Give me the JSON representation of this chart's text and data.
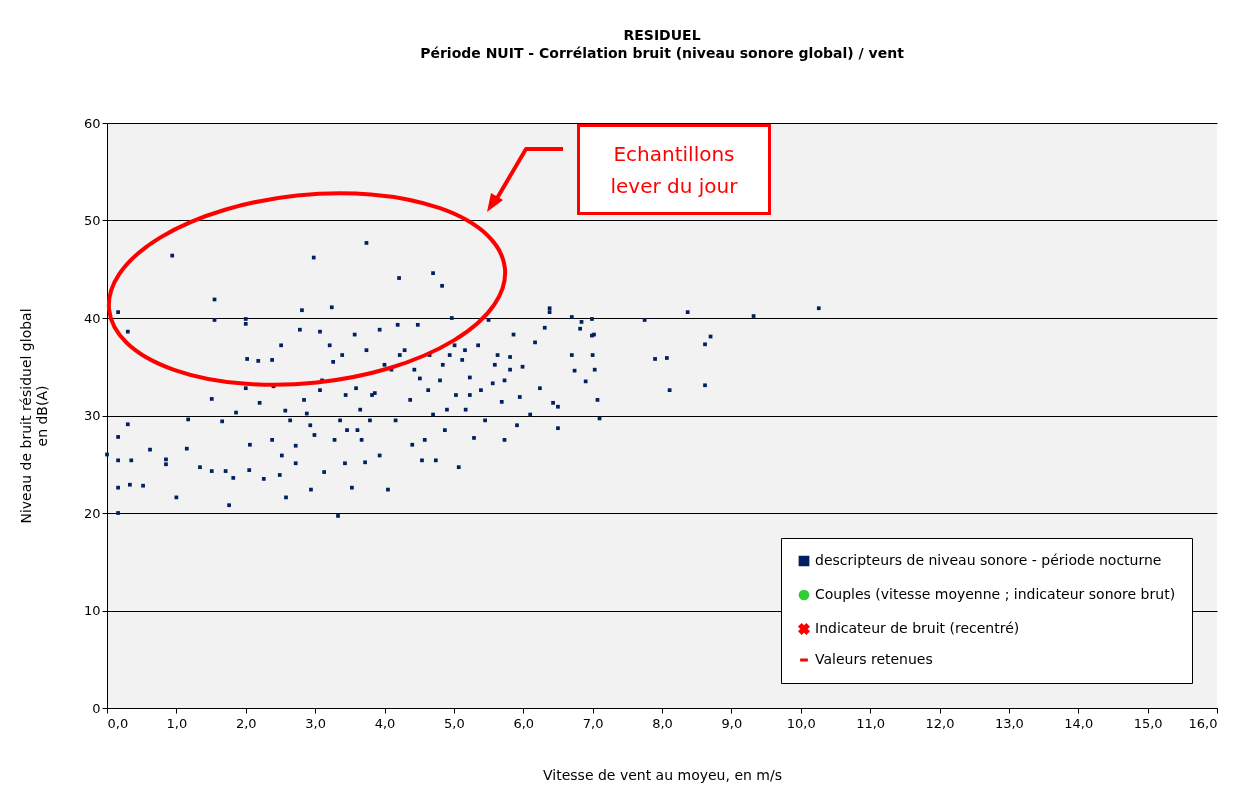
{
  "chart_data": {
    "type": "scatter",
    "title": "RESIDUEL",
    "subtitle": "Période NUIT - Corrélation bruit (niveau sonore global) / vent",
    "xlabel": "Vitesse de vent au moyeu, en m/s",
    "ylabel": "Niveau de bruit résiduel global\nen dB(A)",
    "annotations": [
      "Echantillons\nlever du jour"
    ],
    "xlim": [
      0,
      16
    ],
    "xticks": [
      {
        "value": 0,
        "label": "0,0"
      },
      {
        "value": 1,
        "label": "1,0"
      },
      {
        "value": 2,
        "label": "2,0"
      },
      {
        "value": 3,
        "label": "3,0"
      },
      {
        "value": 4,
        "label": "4,0"
      },
      {
        "value": 5,
        "label": "5,0"
      },
      {
        "value": 6,
        "label": "6,0"
      },
      {
        "value": 7,
        "label": "7,0"
      },
      {
        "value": 8,
        "label": "8,0"
      },
      {
        "value": 9,
        "label": "9,0"
      },
      {
        "value": 10,
        "label": "10,0"
      },
      {
        "value": 11,
        "label": "11,0"
      },
      {
        "value": 12,
        "label": "12,0"
      },
      {
        "value": 13,
        "label": "13,0"
      },
      {
        "value": 14,
        "label": "14,0"
      },
      {
        "value": 15,
        "label": "15,0"
      },
      {
        "value": 16,
        "label": "16,0"
      }
    ],
    "ylim": [
      0,
      60
    ],
    "yticks": [
      0,
      10,
      20,
      30,
      40,
      50,
      60
    ],
    "grid": "y",
    "legend": "bottom right",
    "series": [
      {
        "name": "descripteurs de niveau sonore - période nocturne",
        "marker": "square",
        "color": "#002060",
        "x": [
          0,
          0.16,
          0.16,
          0.16,
          0.16,
          0.16,
          0.3,
          0.3,
          0.35,
          0.33,
          0.52,
          0.62,
          0.85,
          0.85,
          0.94,
          1.0,
          1.15,
          1.17,
          1.34,
          1.51,
          1.55,
          1.55,
          1.51,
          1.66,
          1.71,
          1.76,
          1.82,
          1.86,
          2.0,
          2.0,
          2.0,
          2.02,
          2.06,
          2.05,
          2.18,
          2.2,
          2.26,
          2.38,
          2.38,
          2.4,
          2.49,
          2.51,
          2.57,
          2.64,
          2.58,
          2.72,
          2.72,
          2.81,
          2.84,
          2.88,
          2.98,
          2.99,
          2.94,
          3.07,
          3.1,
          3.13,
          3.24,
          3.26,
          3.28,
          3.33,
          3.39,
          3.44,
          3.46,
          3.53,
          3.57,
          3.59,
          3.65,
          3.74,
          3.72,
          3.74,
          3.79,
          3.86,
          3.93,
          3.93,
          4.21,
          4.7,
          4.83,
          4.05,
          4.1,
          4.16,
          4.19,
          4.29,
          4.37,
          4.4,
          4.48,
          4.51,
          4.54,
          4.65,
          4.7,
          4.74,
          4.8,
          4.87,
          4.97,
          5.01,
          5.03,
          5.07,
          5.12,
          5.17,
          5.23,
          5.29,
          5.35,
          5.39,
          5.45,
          5.5,
          5.56,
          5.63,
          5.69,
          5.73,
          5.81,
          5.86,
          5.91,
          5.95,
          5.99,
          6.1,
          6.17,
          6.24,
          6.31,
          6.38,
          6.38,
          6.43,
          6.5,
          6.5,
          6.7,
          6.7,
          6.74,
          6.82,
          6.84,
          6.9,
          6.99,
          6.99,
          7.0,
          7.03,
          7.02,
          7.07,
          7.1,
          7.75,
          7.9,
          8.07,
          8.11,
          8.37,
          8.62,
          8.62,
          8.7,
          9.32,
          10.26,
          2.78,
          3.21,
          3.07,
          3.36,
          3.67,
          3.82,
          4.0,
          4.22,
          4.43,
          4.63,
          4.84,
          4.94,
          5.16,
          5.23,
          5.59,
          5.73,
          5.81,
          2.52,
          2.93,
          3.43,
          3.61,
          4.58,
          4.9
        ],
        "values": [
          26.0,
          40.6,
          27.8,
          25.4,
          22.6,
          20.0,
          38.6,
          29.1,
          25.4,
          22.9,
          22.8,
          26.5,
          25.5,
          25.0,
          46.4,
          21.6,
          26.6,
          29.6,
          24.7,
          24.3,
          41.9,
          39.8,
          31.7,
          29.4,
          24.3,
          20.8,
          23.6,
          30.3,
          39.9,
          39.4,
          32.8,
          35.8,
          27.0,
          24.4,
          35.6,
          31.3,
          23.5,
          27.5,
          35.7,
          33.0,
          23.9,
          37.2,
          30.5,
          29.5,
          21.6,
          26.9,
          25.1,
          40.8,
          31.6,
          30.2,
          46.2,
          28.0,
          22.4,
          38.6,
          33.6,
          24.2,
          41.1,
          35.5,
          27.5,
          19.7,
          36.2,
          32.1,
          28.5,
          22.6,
          38.3,
          32.8,
          30.6,
          47.7,
          25.2,
          36.7,
          29.5,
          32.3,
          38.8,
          25.9,
          44.1,
          44.6,
          43.3,
          22.4,
          34.7,
          29.5,
          39.3,
          36.7,
          31.6,
          27.0,
          39.3,
          33.8,
          25.4,
          36.2,
          30.1,
          25.4,
          33.6,
          28.5,
          40.0,
          37.2,
          32.1,
          24.7,
          35.7,
          30.6,
          33.9,
          27.7,
          37.2,
          32.6,
          29.5,
          39.8,
          33.3,
          36.2,
          31.4,
          27.5,
          34.7,
          38.3,
          29.0,
          31.9,
          35.0,
          30.1,
          37.5,
          32.8,
          39.0,
          41.0,
          40.6,
          31.3,
          30.9,
          28.7,
          36.2,
          40.1,
          34.6,
          38.9,
          39.6,
          33.5,
          38.2,
          39.9,
          36.2,
          34.7,
          38.3,
          31.6,
          29.7,
          39.8,
          35.8,
          35.9,
          32.6,
          40.6,
          37.3,
          33.1,
          38.1,
          40.2,
          41.0,
          38.8,
          37.2,
          32.6,
          29.5,
          27.5,
          32.1,
          35.2,
          36.2,
          34.7,
          32.6,
          35.2,
          36.2,
          36.7,
          32.1,
          35.2,
          33.6,
          36.0,
          25.9,
          29.0,
          25.1,
          28.5,
          27.5,
          30.6
        ]
      },
      {
        "name": "Couples (vitesse moyenne ; indicateur sonore brut)",
        "marker": "circle",
        "color": "#33cc33"
      },
      {
        "name": "Indicateur de bruit (recentré)",
        "marker": "cross",
        "color": "#ff0000"
      },
      {
        "name": "Valeurs retenues",
        "type": "line",
        "color": "#ff0000"
      }
    ]
  }
}
